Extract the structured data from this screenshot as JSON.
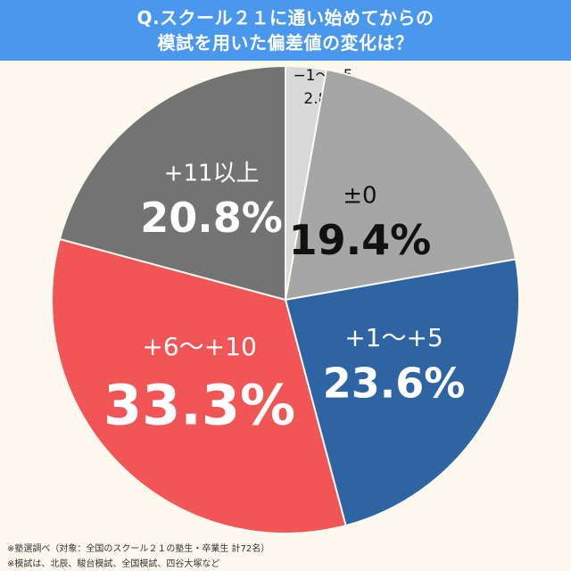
{
  "header": {
    "title_line1": "Q.スクール２１に通い始めてからの",
    "title_line2": "模試を用いた偏差値の変化は？"
  },
  "chart_data": {
    "type": "pie",
    "slices": [
      {
        "label": "−1〜−5",
        "value": 2.8,
        "value_text": "2.8%",
        "color": "#d9d9d9"
      },
      {
        "label": "±0",
        "value": 19.4,
        "value_text": "19.4%",
        "color": "#a6a6a6"
      },
      {
        "label": "+1〜+5",
        "value": 23.6,
        "value_text": "23.6%",
        "color": "#2e63a4"
      },
      {
        "label": "+6〜+10",
        "value": 33.3,
        "value_text": "33.3%",
        "color": "#f25555"
      },
      {
        "label": "+11以上",
        "value": 20.8,
        "value_text": "20.8%",
        "color": "#737373"
      }
    ]
  },
  "footnotes": {
    "note1": "※塾選調べ（対象：全国のスクール２１の塾生・卒業生 計72名）",
    "note2": "※模試は、北辰、駿台模試、全国模試、四谷大塚など"
  }
}
